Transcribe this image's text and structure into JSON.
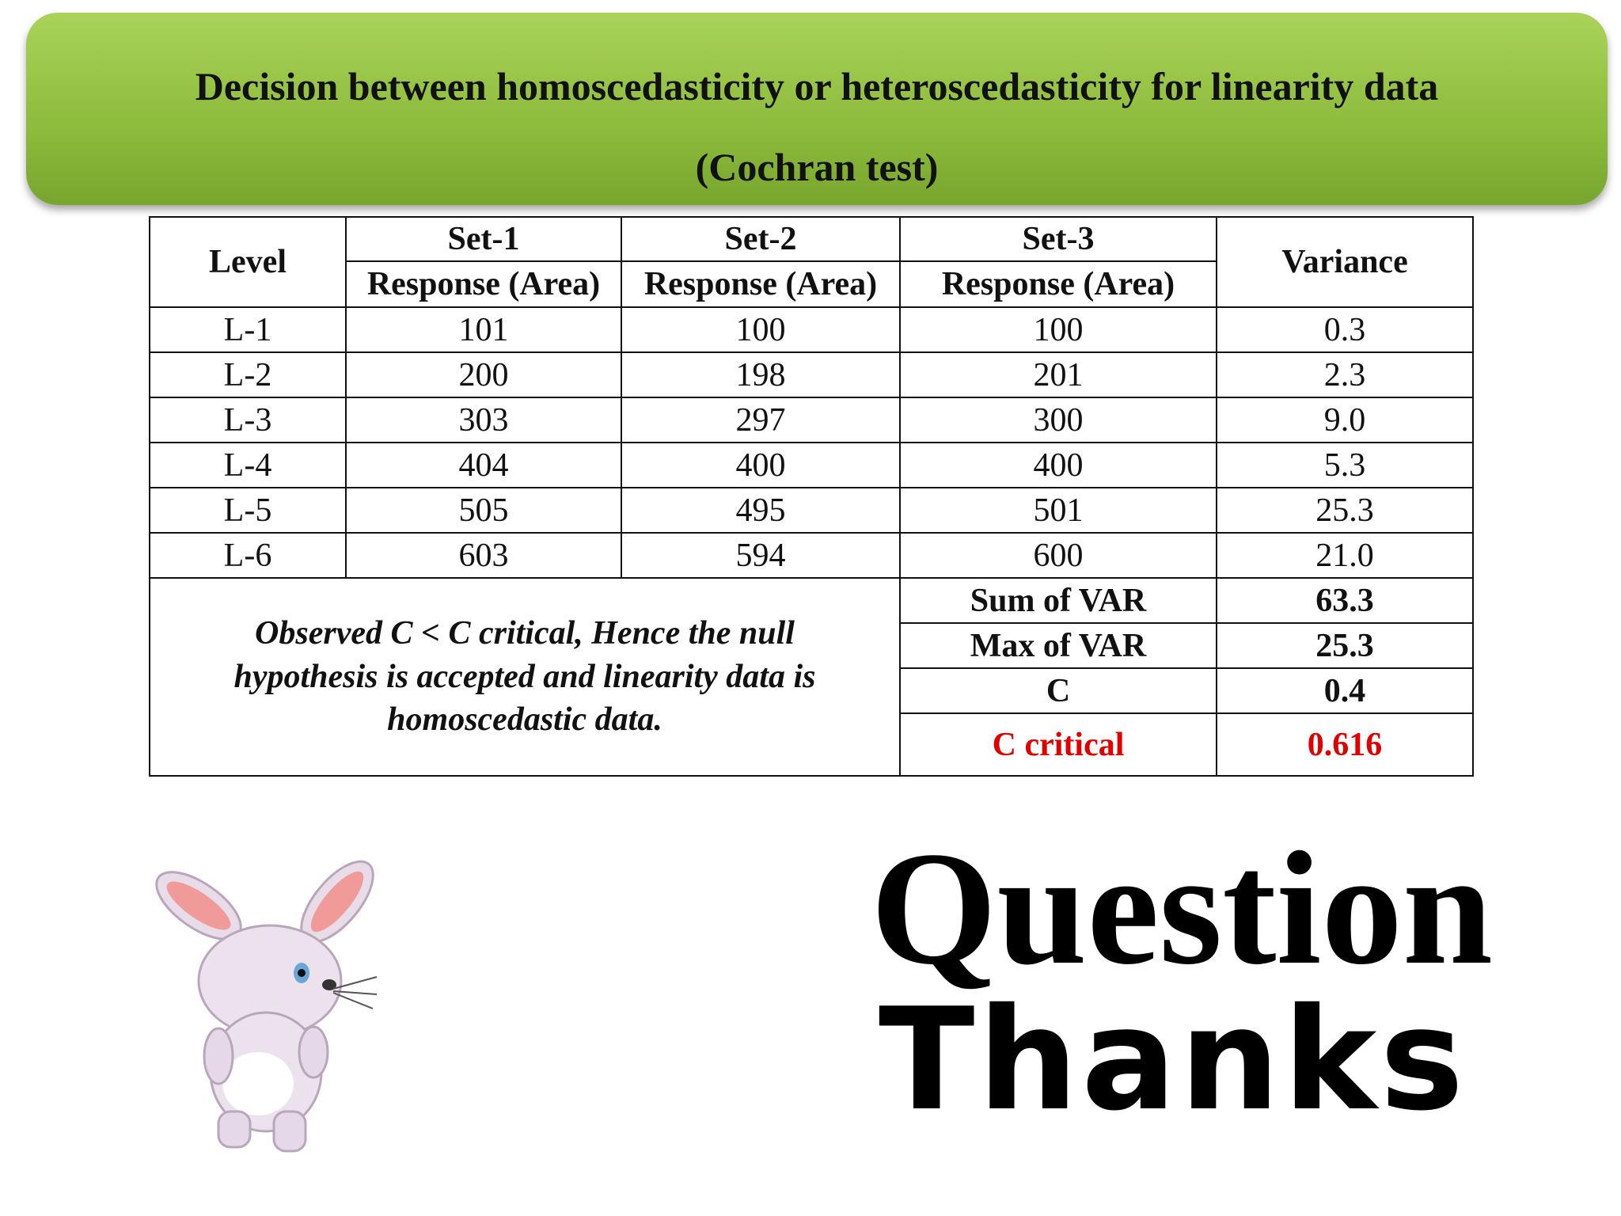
{
  "header": {
    "title": "Decision between homoscedasticity or heteroscedasticity for linearity data",
    "subtitle": "(Cochran test)"
  },
  "table": {
    "level_header": "Level",
    "set_headers": [
      "Set-1",
      "Set-2",
      "Set-3"
    ],
    "sub_headers": [
      "Response (Area)",
      "Response (Area)",
      "Response (Area)"
    ],
    "variance_header": "Variance",
    "rows": [
      [
        "L-1",
        "101",
        "100",
        "100",
        "0.3"
      ],
      [
        "L-2",
        "200",
        "198",
        "201",
        "2.3"
      ],
      [
        "L-3",
        "303",
        "297",
        "300",
        "9.0"
      ],
      [
        "L-4",
        "404",
        "400",
        "400",
        "5.3"
      ],
      [
        "L-5",
        "505",
        "495",
        "501",
        "25.3"
      ],
      [
        "L-6",
        "603",
        "594",
        "600",
        "21.0"
      ]
    ],
    "conclusion": "Observed C < C critical, Hence the null hypothesis is accepted and linearity data is homoscedastic data.",
    "summary": [
      [
        "Sum of VAR",
        "63.3"
      ],
      [
        "Max of VAR",
        "25.3"
      ],
      [
        "C",
        "0.4"
      ],
      [
        "C critical",
        "0.616"
      ]
    ]
  },
  "closing": {
    "question": "Question",
    "thanks": "Thanks"
  }
}
